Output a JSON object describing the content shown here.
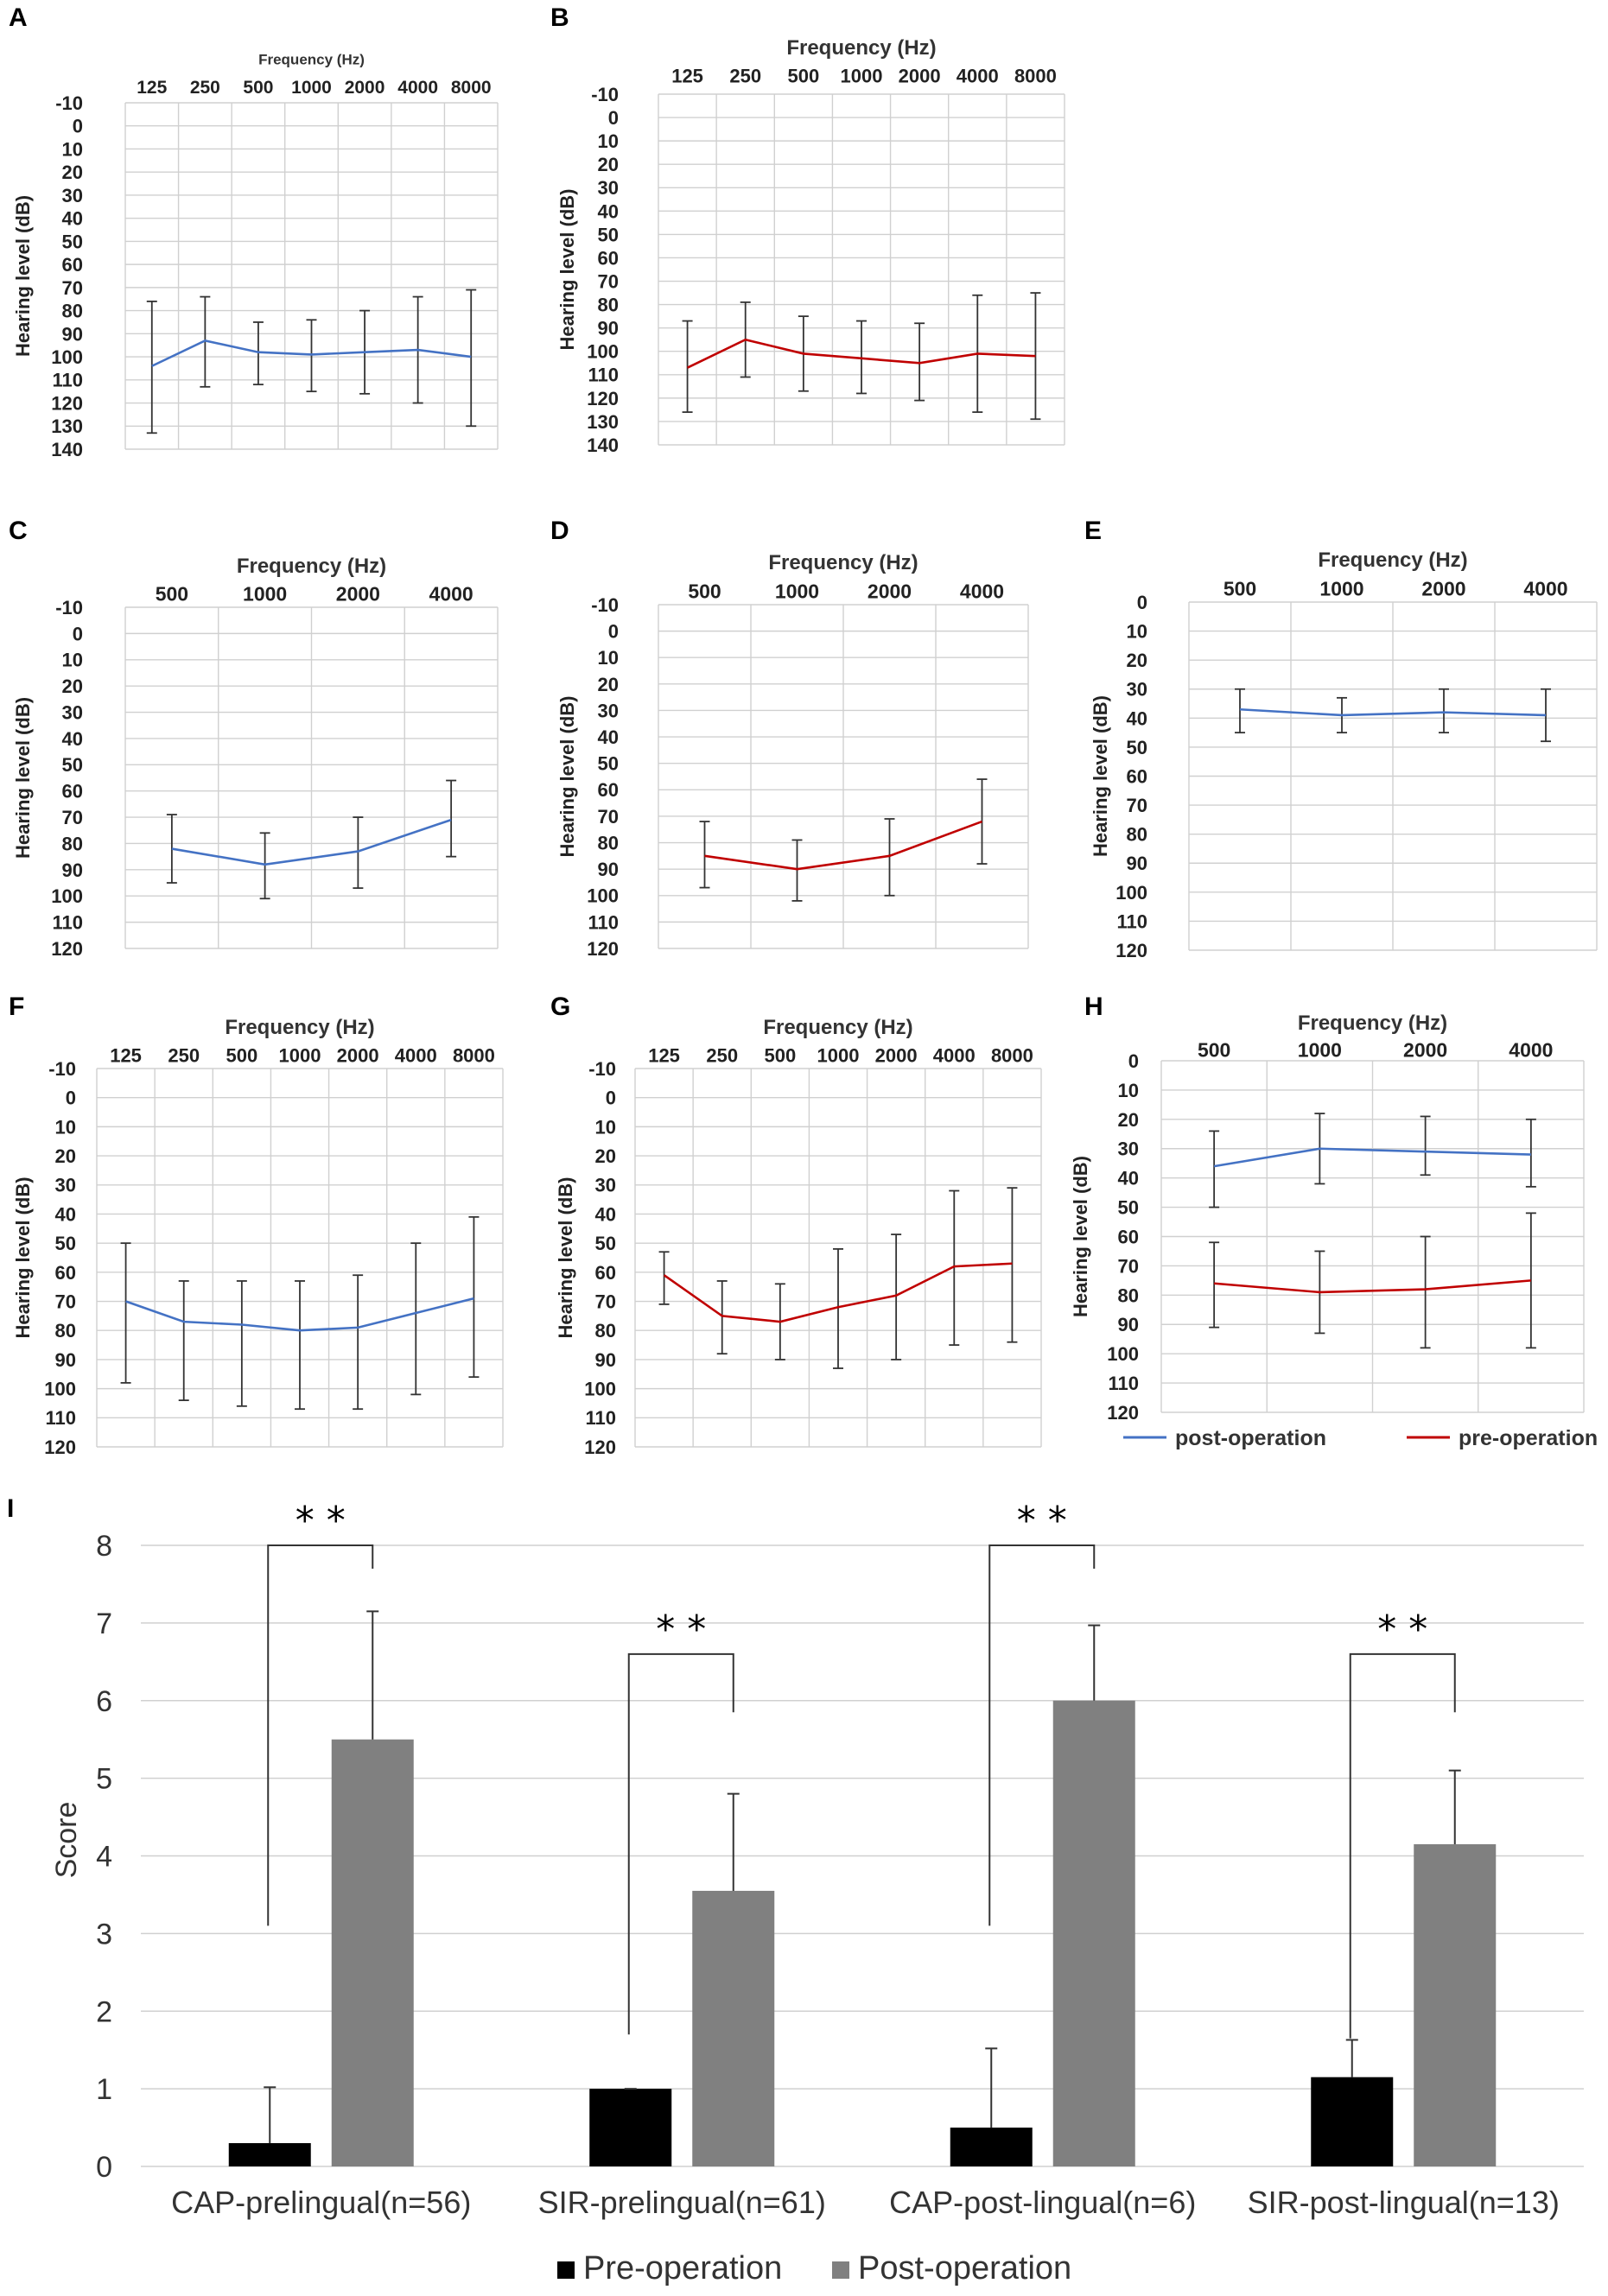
{
  "colors": {
    "post": "#4472c4",
    "pre": "#c00000",
    "bar_pre": "#000000",
    "bar_post": "#808080",
    "grid": "#d0d0d0"
  },
  "chart_data": [
    {
      "id": "A",
      "type": "line",
      "label": "A",
      "title": "Frequency (Hz)",
      "ylabel": "Hearing level (dB)",
      "categories": [
        "125",
        "250",
        "500",
        "1000",
        "2000",
        "4000",
        "8000"
      ],
      "y_ticks": [
        "-10",
        "0",
        "10",
        "20",
        "30",
        "40",
        "50",
        "60",
        "70",
        "80",
        "90",
        "100",
        "110",
        "120",
        "130",
        "140"
      ],
      "ylim": [
        -10,
        140
      ],
      "y_inverted": true,
      "series": [
        {
          "name": "post-operation",
          "color": "#4472c4",
          "values": [
            104,
            93,
            98,
            99,
            98,
            97,
            100
          ],
          "err_upper": [
            133,
            113,
            112,
            115,
            116,
            120,
            130
          ],
          "err_lower": [
            76,
            74,
            85,
            84,
            80,
            74,
            71
          ]
        }
      ]
    },
    {
      "id": "B",
      "type": "line",
      "label": "B",
      "title": "Frequency (Hz)",
      "ylabel": "Hearing level (dB)",
      "categories": [
        "125",
        "250",
        "500",
        "1000",
        "2000",
        "4000",
        "8000"
      ],
      "y_ticks": [
        "-10",
        "0",
        "10",
        "20",
        "30",
        "40",
        "50",
        "60",
        "70",
        "80",
        "90",
        "100",
        "110",
        "120",
        "130",
        "140"
      ],
      "ylim": [
        -10,
        140
      ],
      "y_inverted": true,
      "series": [
        {
          "name": "pre-operation",
          "color": "#c00000",
          "values": [
            107,
            95,
            101,
            103,
            105,
            101,
            102
          ],
          "err_upper": [
            126,
            111,
            117,
            118,
            121,
            126,
            129
          ],
          "err_lower": [
            87,
            79,
            85,
            87,
            88,
            76,
            75
          ]
        }
      ]
    },
    {
      "id": "C",
      "type": "line",
      "label": "C",
      "title": "Frequency (Hz)",
      "ylabel": "Hearing level (dB)",
      "categories": [
        "500",
        "1000",
        "2000",
        "4000"
      ],
      "y_ticks": [
        "-10",
        "0",
        "10",
        "20",
        "30",
        "40",
        "50",
        "60",
        "70",
        "80",
        "90",
        "100",
        "110",
        "120"
      ],
      "ylim": [
        -10,
        120
      ],
      "y_inverted": true,
      "series": [
        {
          "name": "post-operation",
          "color": "#4472c4",
          "values": [
            82,
            88,
            83,
            71
          ],
          "err_upper": [
            95,
            101,
            97,
            85
          ],
          "err_lower": [
            69,
            76,
            70,
            56
          ]
        }
      ]
    },
    {
      "id": "D",
      "type": "line",
      "label": "D",
      "title": "Frequency (Hz)",
      "ylabel": "Hearing level (dB)",
      "categories": [
        "500",
        "1000",
        "2000",
        "4000"
      ],
      "y_ticks": [
        "-10",
        "0",
        "10",
        "20",
        "30",
        "40",
        "50",
        "60",
        "70",
        "80",
        "90",
        "100",
        "110",
        "120"
      ],
      "ylim": [
        -10,
        120
      ],
      "y_inverted": true,
      "series": [
        {
          "name": "pre-operation",
          "color": "#c00000",
          "values": [
            85,
            90,
            85,
            72
          ],
          "err_upper": [
            97,
            102,
            100,
            88
          ],
          "err_lower": [
            72,
            79,
            71,
            56
          ]
        }
      ]
    },
    {
      "id": "E",
      "type": "line",
      "label": "E",
      "title": "Frequency (Hz)",
      "ylabel": "Hearing level (dB)",
      "categories": [
        "500",
        "1000",
        "2000",
        "4000"
      ],
      "y_ticks": [
        "0",
        "10",
        "20",
        "30",
        "40",
        "50",
        "60",
        "70",
        "80",
        "90",
        "100",
        "110",
        "120"
      ],
      "ylim": [
        0,
        120
      ],
      "y_inverted": true,
      "series": [
        {
          "name": "post-operation",
          "color": "#4472c4",
          "values": [
            37,
            39,
            38,
            39
          ],
          "err_upper": [
            45,
            45,
            45,
            48
          ],
          "err_lower": [
            30,
            33,
            30,
            30
          ]
        }
      ]
    },
    {
      "id": "F",
      "type": "line",
      "label": "F",
      "title": "Frequency (Hz)",
      "ylabel": "Hearing level (dB)",
      "categories": [
        "125",
        "250",
        "500",
        "1000",
        "2000",
        "4000",
        "8000"
      ],
      "y_ticks": [
        "-10",
        "0",
        "10",
        "20",
        "30",
        "40",
        "50",
        "60",
        "70",
        "80",
        "90",
        "100",
        "110",
        "120"
      ],
      "ylim": [
        -10,
        120
      ],
      "y_inverted": true,
      "series": [
        {
          "name": "post-operation",
          "color": "#4472c4",
          "values": [
            70,
            77,
            78,
            80,
            79,
            74,
            69
          ],
          "err_upper": [
            98,
            104,
            106,
            107,
            107,
            102,
            96
          ],
          "err_lower": [
            50,
            63,
            63,
            63,
            61,
            50,
            41
          ]
        }
      ]
    },
    {
      "id": "G",
      "type": "line",
      "label": "G",
      "title": "Frequency (Hz)",
      "ylabel": "Hearing level (dB)",
      "categories": [
        "125",
        "250",
        "500",
        "1000",
        "2000",
        "4000",
        "8000"
      ],
      "y_ticks": [
        "-10",
        "0",
        "10",
        "20",
        "30",
        "40",
        "50",
        "60",
        "70",
        "80",
        "90",
        "100",
        "110",
        "120"
      ],
      "ylim": [
        -10,
        120
      ],
      "y_inverted": true,
      "series": [
        {
          "name": "pre-operation",
          "color": "#c00000",
          "values": [
            61,
            75,
            77,
            72,
            68,
            58,
            57
          ],
          "err_upper": [
            71,
            88,
            90,
            93,
            90,
            85,
            84
          ],
          "err_lower": [
            53,
            63,
            64,
            52,
            47,
            32,
            31
          ]
        }
      ]
    },
    {
      "id": "H",
      "type": "line",
      "label": "H",
      "title": "Frequency (Hz)",
      "ylabel": "Hearing level (dB)",
      "categories": [
        "500",
        "1000",
        "2000",
        "4000"
      ],
      "y_ticks": [
        "0",
        "10",
        "20",
        "30",
        "40",
        "50",
        "60",
        "70",
        "80",
        "90",
        "100",
        "110",
        "120"
      ],
      "ylim": [
        0,
        120
      ],
      "y_inverted": true,
      "legend": [
        "post-operation",
        "pre-operation"
      ],
      "series": [
        {
          "name": "post-operation",
          "color": "#4472c4",
          "values": [
            36,
            30,
            31,
            32
          ],
          "err_upper": [
            50,
            42,
            39,
            43
          ],
          "err_lower": [
            24,
            18,
            19,
            20
          ]
        },
        {
          "name": "pre-operation",
          "color": "#c00000",
          "values": [
            76,
            79,
            78,
            75
          ],
          "err_upper": [
            91,
            93,
            98,
            98
          ],
          "err_lower": [
            62,
            65,
            60,
            52
          ]
        }
      ]
    },
    {
      "id": "I",
      "type": "bar",
      "label": "I",
      "ylabel": "Score",
      "ylim": [
        0,
        8
      ],
      "y_ticks": [
        "0",
        "1",
        "2",
        "3",
        "4",
        "5",
        "6",
        "7",
        "8"
      ],
      "categories": [
        "CAP-prelingual(n=56)",
        "SIR-prelingual(n=61)",
        "CAP-post-lingual(n=6)",
        "SIR-post-lingual(n=13)"
      ],
      "series": [
        {
          "name": "Pre-operation",
          "color": "#000000",
          "values": [
            0.3,
            1.0,
            0.5,
            1.15
          ],
          "err": [
            0.72,
            0.0,
            1.02,
            0.48
          ]
        },
        {
          "name": "Post-operation",
          "color": "#808080",
          "values": [
            5.5,
            3.55,
            6.0,
            4.15
          ],
          "err": [
            1.65,
            1.25,
            0.97,
            0.95
          ]
        }
      ],
      "significance": [
        "* *",
        "* *",
        "* *",
        "* *"
      ],
      "sig_bracket_top": [
        8.0,
        6.6,
        8.0,
        6.6
      ],
      "sig_bracket_left_bottom": [
        3.1,
        1.7,
        3.1,
        1.65
      ],
      "sig_bracket_right_bottom": [
        7.7,
        5.85,
        7.7,
        5.85
      ],
      "legend": [
        "Pre-operation",
        "Post-operation"
      ]
    }
  ]
}
